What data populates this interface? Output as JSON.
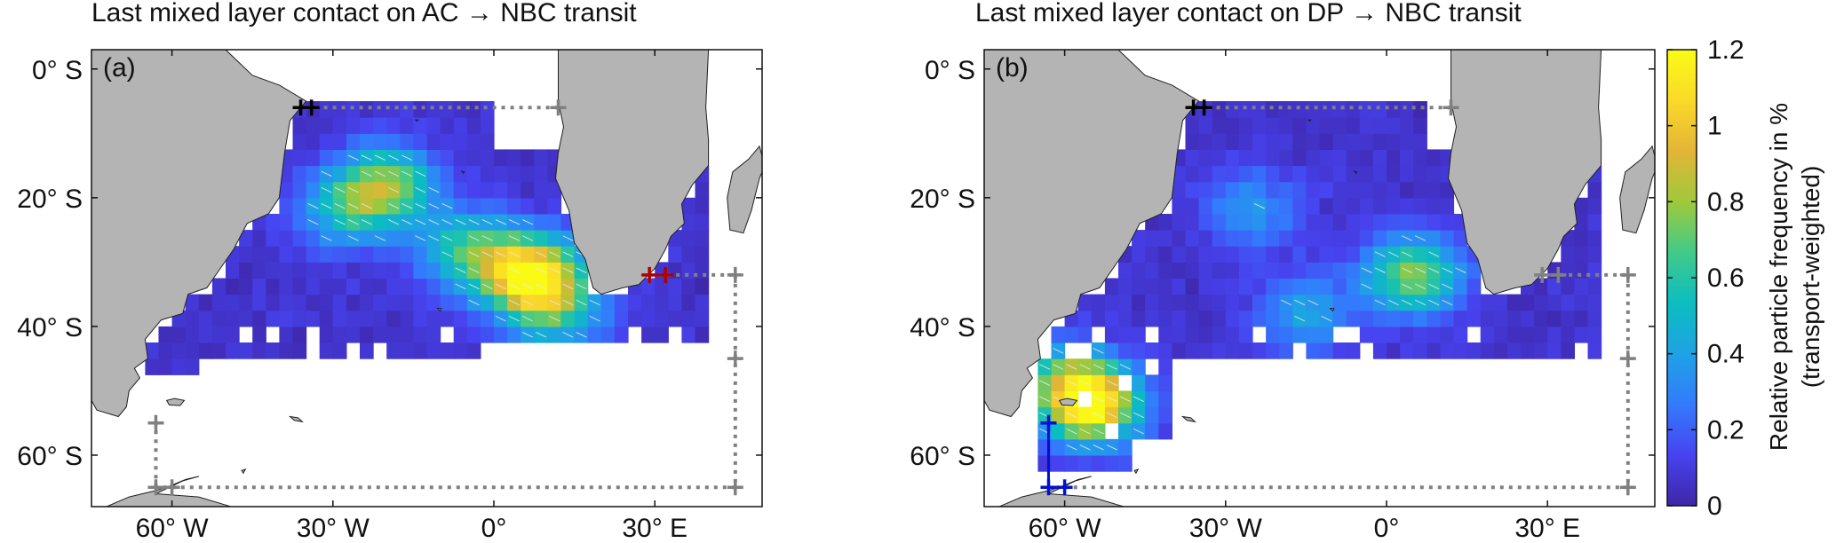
{
  "chart_data": [
    {
      "type": "heatmap",
      "panel_label": "(a)",
      "title": "Last mixed layer contact on AC → NBC transit",
      "x_ticks": [
        {
          "value": -60,
          "label": "60° W"
        },
        {
          "value": -30,
          "label": "30° W"
        },
        {
          "value": 0,
          "label": "0°"
        },
        {
          "value": 30,
          "label": "30° E"
        }
      ],
      "y_ticks": [
        {
          "value": 0,
          "label": "0° S"
        },
        {
          "value": -20,
          "label": "20° S"
        },
        {
          "value": -40,
          "label": "40° S"
        },
        {
          "value": -60,
          "label": "60° S"
        }
      ],
      "xlim": [
        -75,
        50
      ],
      "ylim": [
        -68,
        3
      ],
      "hotspots": [
        {
          "lon": 7,
          "lat": -32,
          "value": 1.15
        },
        {
          "lon": -5,
          "lat": -28,
          "value": 0.55
        },
        {
          "lon": -20,
          "lat": -18,
          "value": 0.7
        },
        {
          "lon": -28,
          "lat": -22,
          "value": 0.4
        },
        {
          "lon": 12,
          "lat": -38,
          "value": 0.4
        }
      ],
      "start_section": "AC",
      "end_section": "NBC"
    },
    {
      "type": "heatmap",
      "panel_label": "(b)",
      "title": "Last mixed layer contact on DP → NBC transit",
      "x_ticks": [
        {
          "value": -60,
          "label": "60° W"
        },
        {
          "value": -30,
          "label": "30° W"
        },
        {
          "value": 0,
          "label": "0°"
        },
        {
          "value": 30,
          "label": "30° E"
        }
      ],
      "y_ticks": [
        {
          "value": 0,
          "label": "0° S"
        },
        {
          "value": -20,
          "label": "20° S"
        },
        {
          "value": -40,
          "label": "40° S"
        },
        {
          "value": -60,
          "label": "60° S"
        }
      ],
      "xlim": [
        -75,
        50
      ],
      "ylim": [
        -68,
        3
      ],
      "hotspots": [
        {
          "lon": -55,
          "lat": -52,
          "value": 1.1
        },
        {
          "lon": 5,
          "lat": -32,
          "value": 0.7
        },
        {
          "lon": -15,
          "lat": -38,
          "value": 0.35
        },
        {
          "lon": -25,
          "lat": -22,
          "value": 0.3
        },
        {
          "lon": -60,
          "lat": -48,
          "value": 0.4
        }
      ],
      "start_section": "DP",
      "end_section": "NBC"
    }
  ],
  "colorbar": {
    "label_line1": "Relative particle frequency in %",
    "label_line2": "(transport-weighted)",
    "min": 0,
    "max": 1.2,
    "ticks": [
      {
        "value": 0,
        "label": "0"
      },
      {
        "value": 0.2,
        "label": "0.2"
      },
      {
        "value": 0.4,
        "label": "0.4"
      },
      {
        "value": 0.6,
        "label": "0.6"
      },
      {
        "value": 0.8,
        "label": "0.8"
      },
      {
        "value": 1.0,
        "label": "1"
      },
      {
        "value": 1.2,
        "label": "1.2"
      }
    ],
    "colormap": [
      "#3e26a8",
      "#4743f0",
      "#337bfd",
      "#1fa2e5",
      "#0bbdc0",
      "#41ca89",
      "#9fc93c",
      "#e3b536",
      "#fbd929",
      "#f9fb15"
    ]
  },
  "colors": {
    "land": "#b4b4b4",
    "land_outline": "#202020",
    "section_line": "#808080",
    "nbc_marker": "#000000",
    "ac_marker": "#b00000",
    "dp_marker": "#0010d0"
  }
}
